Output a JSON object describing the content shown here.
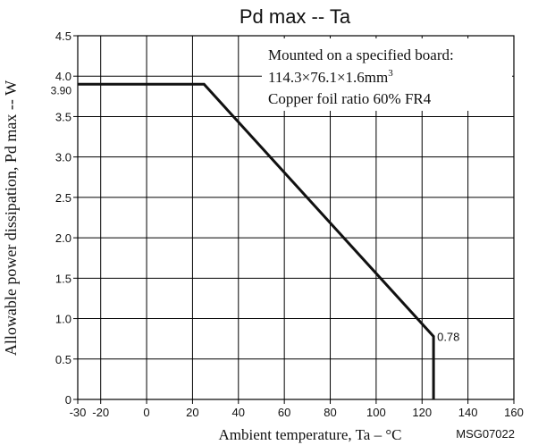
{
  "chart_data": {
    "type": "line",
    "title": "Pd max -- Ta",
    "xlabel": "Ambient temperature, Ta – °C",
    "ylabel": "Allowable power dissipation, Pd max -- W",
    "xlim": [
      -30,
      160
    ],
    "ylim": [
      0,
      4.5
    ],
    "x_ticks": [
      -30,
      -20,
      0,
      20,
      40,
      60,
      80,
      100,
      120,
      140,
      160
    ],
    "x_tick_labels": [
      "-30",
      "-20",
      "0",
      "20",
      "40",
      "60",
      "80",
      "100",
      "120",
      "140",
      "160"
    ],
    "y_ticks": [
      0,
      0.5,
      1.0,
      1.5,
      2.0,
      2.5,
      3.0,
      3.5,
      4.0,
      4.5
    ],
    "y_tick_labels": [
      "0",
      "0.5",
      "1.0",
      "1.5",
      "2.0",
      "2.5",
      "3.0",
      "3.5",
      "4.0",
      "4.5"
    ],
    "extra_y_tick": {
      "value": 3.9,
      "label": "3.90"
    },
    "grid": true,
    "series": [
      {
        "x": [
          -30,
          25,
          125,
          125
        ],
        "y": [
          3.9,
          3.9,
          0.78,
          0
        ]
      }
    ],
    "annotations": {
      "point_label": {
        "x": 125,
        "y": 0.78,
        "text": "0.78"
      },
      "note_line1": "Mounted on a specified board:",
      "note_line2_main": "114.3×76.1×1.6mm",
      "note_line2_sup": "3",
      "note_line3": "Copper foil ratio 60% FR4"
    },
    "code": "MSG07022"
  }
}
